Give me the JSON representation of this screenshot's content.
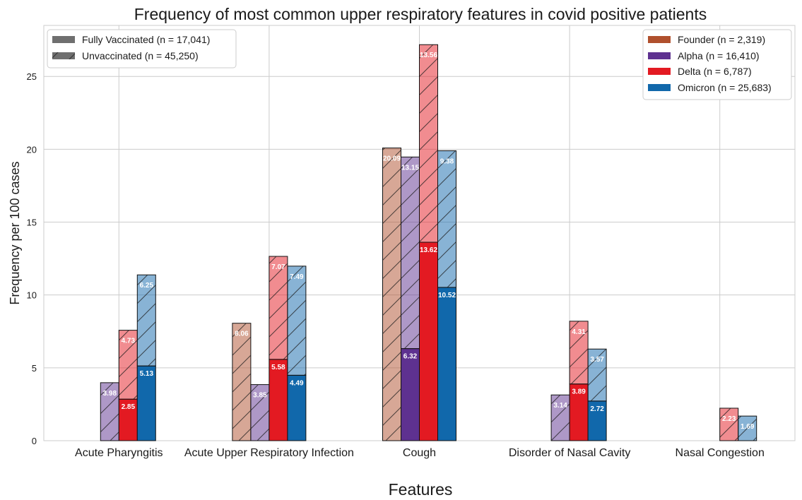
{
  "chart_data": {
    "type": "bar",
    "stacked": true,
    "title": "Frequency of most common upper respiratory features in covid positive patients",
    "xlabel": "Features",
    "ylabel": "Frequency per 100 cases",
    "ylim": [
      0,
      28.5
    ],
    "yticks": [
      "0",
      "5",
      "10",
      "15",
      "20",
      "25"
    ],
    "grid": true,
    "categories": [
      "Acute Pharyngitis",
      "Acute Upper Respiratory Infection",
      "Cough",
      "Disorder of Nasal Cavity",
      "Nasal Congestion"
    ],
    "stack_legend": {
      "placement": "top-left",
      "entries": [
        {
          "label": "Fully Vaccinated (n = 17,041)",
          "style": "solid"
        },
        {
          "label": "Unvaccinated (n = 45,250)",
          "style": "hatched"
        }
      ]
    },
    "variant_legend": {
      "placement": "top-right",
      "entries": [
        {
          "label": "Founder (n = 2,319)",
          "color": "#b0502d"
        },
        {
          "label": "Alpha (n = 16,410)",
          "color": "#5e3190"
        },
        {
          "label": "Delta (n = 6,787)",
          "color": "#e31a22"
        },
        {
          "label": "Omicron (n = 25,683)",
          "color": "#1168ab"
        }
      ]
    },
    "series": [
      {
        "name": "Founder",
        "color": "#b0502d",
        "vaccinated": [
          0,
          0,
          0,
          0,
          0
        ],
        "unvaccinated": [
          0,
          8.06,
          20.09,
          0,
          0
        ],
        "vaccinated_labels": [
          "",
          "",
          "",
          "",
          ""
        ],
        "unvaccinated_labels": [
          "",
          "8.06",
          "20.09",
          "",
          ""
        ]
      },
      {
        "name": "Alpha",
        "color": "#5e3190",
        "vaccinated": [
          0,
          0,
          6.32,
          0,
          0
        ],
        "unvaccinated": [
          3.98,
          3.85,
          13.15,
          3.14,
          0
        ],
        "vaccinated_labels": [
          "",
          "",
          "6.32",
          "",
          ""
        ],
        "unvaccinated_labels": [
          "3.98",
          "3.85",
          "13.15",
          "3.14",
          ""
        ]
      },
      {
        "name": "Delta",
        "color": "#e31a22",
        "vaccinated": [
          2.85,
          5.58,
          13.62,
          3.89,
          0
        ],
        "unvaccinated": [
          4.73,
          7.07,
          13.56,
          4.31,
          2.23
        ],
        "vaccinated_labels": [
          "2.85",
          "5.58",
          "13.62",
          "3.89",
          ""
        ],
        "unvaccinated_labels": [
          "4.73",
          "7.07",
          "13.56",
          "4.31",
          "2.23"
        ]
      },
      {
        "name": "Omicron",
        "color": "#1168ab",
        "vaccinated": [
          5.13,
          4.49,
          10.52,
          2.72,
          0
        ],
        "unvaccinated": [
          6.25,
          7.49,
          9.38,
          3.57,
          1.69
        ],
        "vaccinated_labels": [
          "5.13",
          "4.49",
          "10.52",
          "2.72",
          ""
        ],
        "unvaccinated_labels": [
          "6.25",
          "7.49",
          "9.38",
          "3.57",
          "1.69"
        ]
      }
    ]
  }
}
